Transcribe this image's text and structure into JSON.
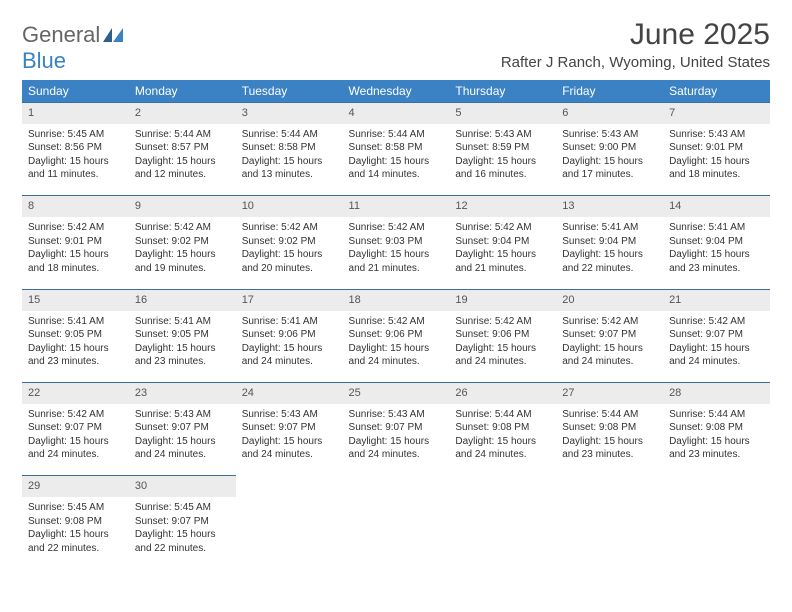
{
  "logo": {
    "word1": "General",
    "word2": "Blue"
  },
  "title": "June 2025",
  "location": "Rafter J Ranch, Wyoming, United States",
  "header_bg": "#3b82c4",
  "header_fg": "#ffffff",
  "daynum_bg": "#ececec",
  "rule_color": "#3b6ea0",
  "columns": [
    "Sunday",
    "Monday",
    "Tuesday",
    "Wednesday",
    "Thursday",
    "Friday",
    "Saturday"
  ],
  "font": {
    "body_size": 10,
    "header_size": 12,
    "title_size": 30,
    "location_size": 15
  },
  "weeks": [
    [
      {
        "n": "1",
        "sr": "5:45 AM",
        "ss": "8:56 PM",
        "dl": "15 hours and 11 minutes."
      },
      {
        "n": "2",
        "sr": "5:44 AM",
        "ss": "8:57 PM",
        "dl": "15 hours and 12 minutes."
      },
      {
        "n": "3",
        "sr": "5:44 AM",
        "ss": "8:58 PM",
        "dl": "15 hours and 13 minutes."
      },
      {
        "n": "4",
        "sr": "5:44 AM",
        "ss": "8:58 PM",
        "dl": "15 hours and 14 minutes."
      },
      {
        "n": "5",
        "sr": "5:43 AM",
        "ss": "8:59 PM",
        "dl": "15 hours and 16 minutes."
      },
      {
        "n": "6",
        "sr": "5:43 AM",
        "ss": "9:00 PM",
        "dl": "15 hours and 17 minutes."
      },
      {
        "n": "7",
        "sr": "5:43 AM",
        "ss": "9:01 PM",
        "dl": "15 hours and 18 minutes."
      }
    ],
    [
      {
        "n": "8",
        "sr": "5:42 AM",
        "ss": "9:01 PM",
        "dl": "15 hours and 18 minutes."
      },
      {
        "n": "9",
        "sr": "5:42 AM",
        "ss": "9:02 PM",
        "dl": "15 hours and 19 minutes."
      },
      {
        "n": "10",
        "sr": "5:42 AM",
        "ss": "9:02 PM",
        "dl": "15 hours and 20 minutes."
      },
      {
        "n": "11",
        "sr": "5:42 AM",
        "ss": "9:03 PM",
        "dl": "15 hours and 21 minutes."
      },
      {
        "n": "12",
        "sr": "5:42 AM",
        "ss": "9:04 PM",
        "dl": "15 hours and 21 minutes."
      },
      {
        "n": "13",
        "sr": "5:41 AM",
        "ss": "9:04 PM",
        "dl": "15 hours and 22 minutes."
      },
      {
        "n": "14",
        "sr": "5:41 AM",
        "ss": "9:04 PM",
        "dl": "15 hours and 23 minutes."
      }
    ],
    [
      {
        "n": "15",
        "sr": "5:41 AM",
        "ss": "9:05 PM",
        "dl": "15 hours and 23 minutes."
      },
      {
        "n": "16",
        "sr": "5:41 AM",
        "ss": "9:05 PM",
        "dl": "15 hours and 23 minutes."
      },
      {
        "n": "17",
        "sr": "5:41 AM",
        "ss": "9:06 PM",
        "dl": "15 hours and 24 minutes."
      },
      {
        "n": "18",
        "sr": "5:42 AM",
        "ss": "9:06 PM",
        "dl": "15 hours and 24 minutes."
      },
      {
        "n": "19",
        "sr": "5:42 AM",
        "ss": "9:06 PM",
        "dl": "15 hours and 24 minutes."
      },
      {
        "n": "20",
        "sr": "5:42 AM",
        "ss": "9:07 PM",
        "dl": "15 hours and 24 minutes."
      },
      {
        "n": "21",
        "sr": "5:42 AM",
        "ss": "9:07 PM",
        "dl": "15 hours and 24 minutes."
      }
    ],
    [
      {
        "n": "22",
        "sr": "5:42 AM",
        "ss": "9:07 PM",
        "dl": "15 hours and 24 minutes."
      },
      {
        "n": "23",
        "sr": "5:43 AM",
        "ss": "9:07 PM",
        "dl": "15 hours and 24 minutes."
      },
      {
        "n": "24",
        "sr": "5:43 AM",
        "ss": "9:07 PM",
        "dl": "15 hours and 24 minutes."
      },
      {
        "n": "25",
        "sr": "5:43 AM",
        "ss": "9:07 PM",
        "dl": "15 hours and 24 minutes."
      },
      {
        "n": "26",
        "sr": "5:44 AM",
        "ss": "9:08 PM",
        "dl": "15 hours and 24 minutes."
      },
      {
        "n": "27",
        "sr": "5:44 AM",
        "ss": "9:08 PM",
        "dl": "15 hours and 23 minutes."
      },
      {
        "n": "28",
        "sr": "5:44 AM",
        "ss": "9:08 PM",
        "dl": "15 hours and 23 minutes."
      }
    ],
    [
      {
        "n": "29",
        "sr": "5:45 AM",
        "ss": "9:08 PM",
        "dl": "15 hours and 22 minutes."
      },
      {
        "n": "30",
        "sr": "5:45 AM",
        "ss": "9:07 PM",
        "dl": "15 hours and 22 minutes."
      },
      null,
      null,
      null,
      null,
      null
    ]
  ],
  "labels": {
    "sunrise": "Sunrise: ",
    "sunset": "Sunset: ",
    "daylight": "Daylight: "
  }
}
